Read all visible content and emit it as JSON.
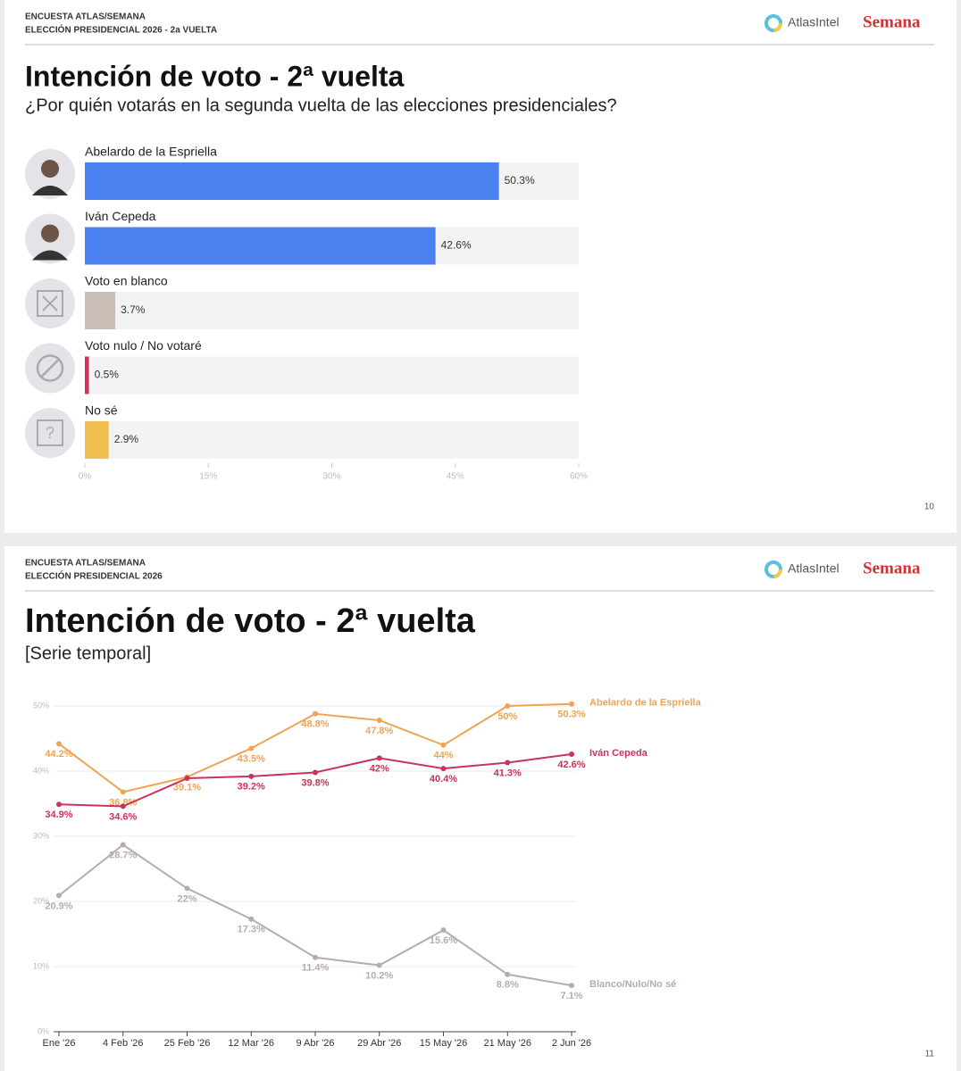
{
  "slides": [
    {
      "header": [
        "ENCUESTA ATLAS/SEMANA",
        "ELECCIÓN PRESIDENCIAL 2026 - 2a VUELTA"
      ],
      "logos": [
        "AtlasIntel",
        "Semana"
      ],
      "page": "10"
    },
    {
      "header": [
        "ENCUESTA ATLAS/SEMANA",
        "ELECCIÓN PRESIDENCIAL 2026"
      ],
      "logos": [
        "AtlasIntel",
        "Semana"
      ],
      "page": "11"
    }
  ],
  "chart_data": [
    {
      "type": "bar",
      "orientation": "horizontal",
      "title": "Intención de voto - 2ª vuelta",
      "subtitle": "¿Por quién votarás en la segunda vuelta de las elecciones presidenciales?",
      "categories": [
        "Abelardo de la Espriella",
        "Iván Cepeda",
        "Voto en blanco",
        "Voto nulo / No votaré",
        "No sé"
      ],
      "values": [
        50.3,
        42.6,
        3.7,
        0.5,
        2.9
      ],
      "value_labels": [
        "50.3%",
        "42.6%",
        "3.7%",
        "0.5%",
        "2.9%"
      ],
      "colors": [
        "#4a80f0",
        "#4a80f0",
        "#c9bdb6",
        "#d0325a",
        "#f0c050"
      ],
      "xlim": [
        0,
        60
      ],
      "xticks": [
        {
          "value": 0,
          "label": "0%"
        },
        {
          "value": 15,
          "label": "15%"
        },
        {
          "value": 30,
          "label": "30%"
        },
        {
          "value": 45,
          "label": "45%"
        },
        {
          "value": 60,
          "label": "60%"
        }
      ]
    },
    {
      "type": "line",
      "title": "Intención de voto - 2ª vuelta",
      "subtitle": "[Serie temporal]",
      "categories": [
        "Ene '26",
        "4 Feb '26",
        "25 Feb '26",
        "12 Mar '26",
        "9 Abr '26",
        "29 Abr '26",
        "15 May '26",
        "21 May '26",
        "2 Jun '26"
      ],
      "series": [
        {
          "name": "Abelardo de la Espriella",
          "color": "#eea452",
          "values": [
            44.2,
            36.8,
            39.1,
            43.5,
            48.8,
            47.8,
            44,
            50,
            50.3
          ],
          "value_labels": [
            "44.2%",
            "36.8%",
            "39.1%",
            "43.5%",
            "48.8%",
            "47.8%",
            "44%",
            "50%",
            "50.3%"
          ]
        },
        {
          "name": "Iván Cepeda",
          "color": "#c8345a",
          "values": [
            34.9,
            34.6,
            38.9,
            39.2,
            39.8,
            42,
            40.4,
            41.3,
            42.6
          ],
          "value_labels": [
            "34.9%",
            "34.6%",
            null,
            "39.2%",
            "39.8%",
            "42%",
            "40.4%",
            "41.3%",
            "42.6%"
          ]
        },
        {
          "name": "Blanco/Nulo/No sé",
          "color": "#b5adad",
          "values": [
            20.9,
            28.7,
            22,
            17.3,
            11.4,
            10.2,
            15.6,
            8.8,
            7.1
          ],
          "value_labels": [
            "20.9%",
            "28.7%",
            "22%",
            "17.3%",
            "11.4%",
            "10.2%",
            "15.6%",
            "8.8%",
            "7.1%"
          ]
        }
      ],
      "ylim": [
        0,
        50
      ],
      "yticks": [
        {
          "value": 0,
          "label": "0%"
        },
        {
          "value": 10,
          "label": "10%"
        },
        {
          "value": 20,
          "label": "20%"
        },
        {
          "value": 30,
          "label": "30%"
        },
        {
          "value": 40,
          "label": "40%"
        },
        {
          "value": 50,
          "label": "50%"
        }
      ],
      "grid": true
    }
  ]
}
